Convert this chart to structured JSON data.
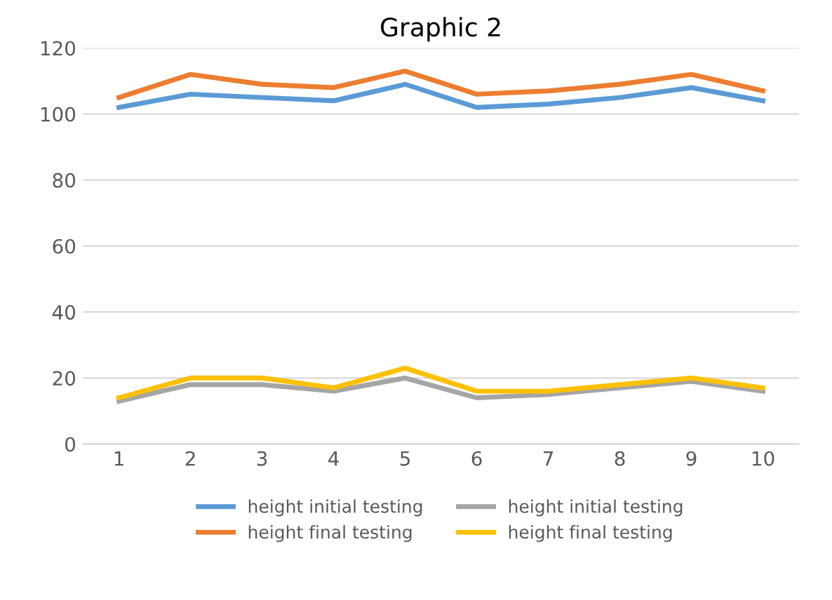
{
  "chart_data": {
    "type": "line",
    "title": "Graphic 2",
    "categories": [
      "1",
      "2",
      "3",
      "4",
      "5",
      "6",
      "7",
      "8",
      "9",
      "10"
    ],
    "series": [
      {
        "name": "height initial testing",
        "color": "#5b9bd5",
        "values": [
          102,
          106,
          105,
          104,
          109,
          102,
          103,
          105,
          108,
          104
        ]
      },
      {
        "name": "height final testing",
        "color": "#ed7d31",
        "values": [
          105,
          112,
          109,
          108,
          113,
          106,
          107,
          109,
          112,
          107
        ]
      },
      {
        "name": "height initial testing",
        "color": "#a5a5a5",
        "values": [
          13,
          18,
          18,
          16,
          20,
          14,
          15,
          17,
          19,
          16
        ]
      },
      {
        "name": "height final testing",
        "color": "#ffc000",
        "values": [
          14,
          20,
          20,
          17,
          23,
          16,
          16,
          18,
          20,
          17
        ]
      }
    ],
    "ylim": [
      0,
      120
    ],
    "yticks": [
      0,
      20,
      40,
      60,
      80,
      100,
      120
    ],
    "grid": "y",
    "legend": "bottom",
    "marker": "none",
    "line_style": "solid"
  }
}
